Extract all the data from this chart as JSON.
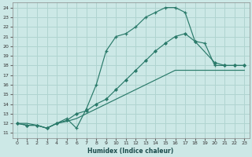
{
  "xlabel": "Humidex (Indice chaleur)",
  "bg_color": "#cce8e6",
  "grid_color": "#b0d4d0",
  "line_color": "#2a7a6a",
  "xlim": [
    -0.5,
    23.5
  ],
  "ylim": [
    10.5,
    24.5
  ],
  "xticks": [
    0,
    1,
    2,
    3,
    4,
    5,
    6,
    7,
    8,
    9,
    10,
    11,
    12,
    13,
    14,
    15,
    16,
    17,
    18,
    19,
    20,
    21,
    22,
    23
  ],
  "yticks": [
    11,
    12,
    13,
    14,
    15,
    16,
    17,
    18,
    19,
    20,
    21,
    22,
    23,
    24
  ],
  "curve1_x": [
    0,
    1,
    2,
    3,
    4,
    5,
    6,
    7,
    8,
    9,
    10,
    11,
    12,
    13,
    14,
    15,
    16,
    17,
    18,
    19,
    20,
    21,
    22,
    23
  ],
  "curve1_y": [
    12,
    11.8,
    11.8,
    11.5,
    12,
    12.5,
    11.5,
    13.5,
    16,
    19.5,
    21,
    21.3,
    22,
    23,
    23.5,
    24,
    24,
    23.5,
    20.5,
    20.3,
    18,
    18,
    18,
    18
  ],
  "curve2_x": [
    0,
    1,
    2,
    3,
    4,
    5,
    6,
    7,
    8,
    9,
    10,
    11,
    12,
    13,
    14,
    15,
    16,
    17,
    18,
    19,
    20,
    21,
    22,
    23
  ],
  "curve2_y": [
    12,
    12,
    11.8,
    11.5,
    12,
    12.2,
    12.5,
    13.0,
    13.5,
    14.0,
    14.5,
    15.0,
    15.5,
    16.0,
    16.5,
    17.0,
    17.5,
    17.5,
    17.5,
    17.5,
    17.5,
    17.5,
    17.5,
    17.5
  ],
  "curve3_x": [
    0,
    1,
    2,
    3,
    4,
    5,
    6,
    7,
    8,
    9,
    10,
    11,
    12,
    13,
    14,
    15,
    16,
    17,
    18,
    20,
    21,
    22,
    23
  ],
  "curve3_y": [
    12,
    11.8,
    11.8,
    11.5,
    12,
    12.3,
    13.0,
    13.3,
    14.0,
    14.5,
    15.5,
    16.5,
    17.5,
    18.5,
    19.5,
    20.3,
    21.0,
    21.3,
    20.5,
    18.3,
    18,
    18,
    18
  ]
}
